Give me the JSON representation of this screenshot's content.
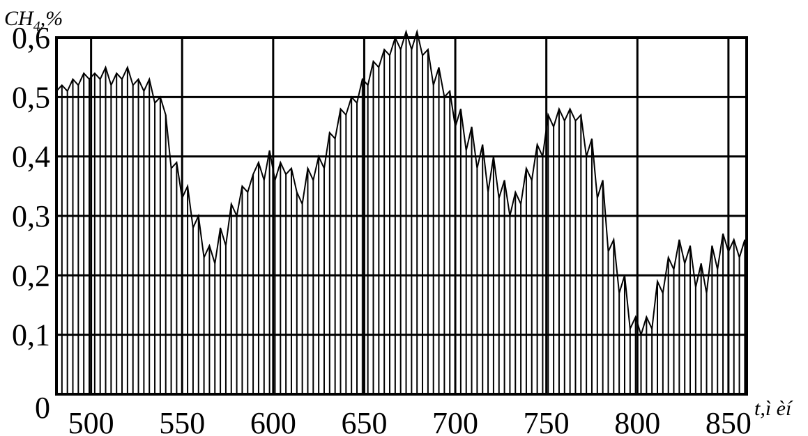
{
  "chart_data": {
    "type": "area",
    "title": "",
    "ylabel": "CH₄,%",
    "xlabel": "t,ì èí",
    "xlim": [
      481,
      860
    ],
    "ylim": [
      0,
      0.6
    ],
    "grid": true,
    "x_ticks": [
      500,
      550,
      600,
      650,
      700,
      750,
      800,
      850
    ],
    "y_ticks": [
      0,
      0.1,
      0.2,
      0.3,
      0.4,
      0.5,
      0.6
    ],
    "x_tick_labels": [
      "500",
      "550",
      "600",
      "650",
      "700",
      "750",
      "800",
      "850"
    ],
    "y_tick_labels": [
      "0",
      "0,1",
      "0,2",
      "0,3",
      "0,4",
      "0,5",
      "0,6"
    ],
    "x": [
      481,
      484,
      487,
      490,
      493,
      496,
      499,
      502,
      505,
      508,
      511,
      514,
      517,
      520,
      523,
      526,
      529,
      532,
      535,
      538,
      541,
      544,
      547,
      550,
      553,
      556,
      559,
      562,
      565,
      568,
      571,
      574,
      577,
      580,
      583,
      586,
      589,
      592,
      595,
      598,
      601,
      604,
      607,
      610,
      613,
      616,
      619,
      622,
      625,
      628,
      631,
      634,
      637,
      640,
      643,
      646,
      649,
      652,
      655,
      658,
      661,
      664,
      667,
      670,
      673,
      676,
      679,
      682,
      685,
      688,
      691,
      694,
      697,
      700,
      703,
      706,
      709,
      712,
      715,
      718,
      721,
      724,
      727,
      730,
      733,
      736,
      739,
      742,
      745,
      748,
      751,
      754,
      757,
      760,
      763,
      766,
      769,
      772,
      775,
      778,
      781,
      784,
      787,
      790,
      793,
      796,
      799,
      802,
      805,
      808,
      811,
      814,
      817,
      820,
      823,
      826,
      829,
      832,
      835,
      838,
      841,
      844,
      847,
      850,
      853,
      856,
      859
    ],
    "y": [
      0.51,
      0.52,
      0.51,
      0.53,
      0.52,
      0.54,
      0.53,
      0.54,
      0.53,
      0.55,
      0.52,
      0.54,
      0.53,
      0.55,
      0.52,
      0.53,
      0.51,
      0.53,
      0.49,
      0.5,
      0.47,
      0.38,
      0.39,
      0.33,
      0.35,
      0.28,
      0.3,
      0.23,
      0.25,
      0.22,
      0.28,
      0.25,
      0.32,
      0.3,
      0.35,
      0.34,
      0.37,
      0.39,
      0.36,
      0.41,
      0.36,
      0.39,
      0.37,
      0.38,
      0.34,
      0.32,
      0.38,
      0.36,
      0.4,
      0.38,
      0.44,
      0.43,
      0.48,
      0.47,
      0.5,
      0.49,
      0.53,
      0.52,
      0.56,
      0.55,
      0.58,
      0.57,
      0.6,
      0.58,
      0.61,
      0.58,
      0.61,
      0.57,
      0.58,
      0.52,
      0.55,
      0.5,
      0.51,
      0.45,
      0.48,
      0.41,
      0.45,
      0.38,
      0.42,
      0.34,
      0.4,
      0.33,
      0.36,
      0.3,
      0.34,
      0.32,
      0.38,
      0.36,
      0.42,
      0.4,
      0.47,
      0.45,
      0.48,
      0.46,
      0.48,
      0.46,
      0.47,
      0.4,
      0.43,
      0.33,
      0.36,
      0.24,
      0.26,
      0.17,
      0.2,
      0.11,
      0.13,
      0.1,
      0.13,
      0.11,
      0.19,
      0.17,
      0.23,
      0.21,
      0.26,
      0.22,
      0.25,
      0.18,
      0.22,
      0.17,
      0.25,
      0.21,
      0.27,
      0.24,
      0.26,
      0.23,
      0.26
    ]
  }
}
